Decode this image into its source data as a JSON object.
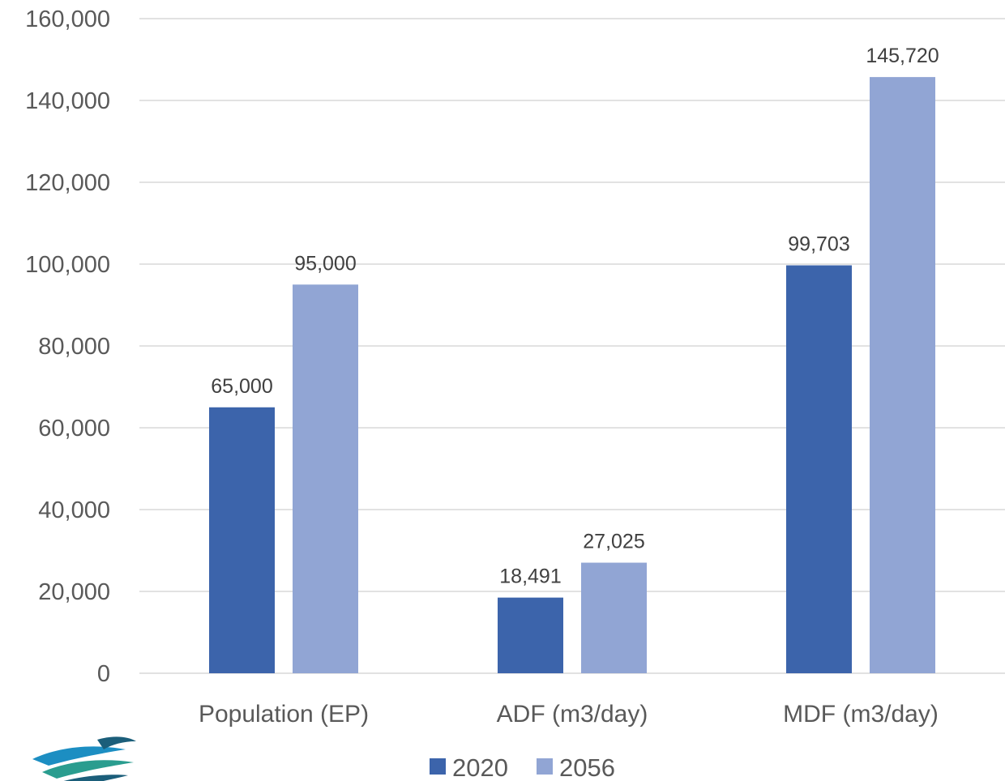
{
  "chart_data": {
    "type": "bar",
    "categories": [
      "Population (EP)",
      "ADF (m3/day)",
      "MDF (m3/day)"
    ],
    "series": [
      {
        "name": "2020",
        "values": [
          65000,
          18491,
          99703
        ],
        "labels": [
          "65,000",
          "18,491",
          "99,703"
        ],
        "color": "#3c64ab"
      },
      {
        "name": "2056",
        "values": [
          95000,
          27025,
          145720
        ],
        "labels": [
          "95,000",
          "27,025",
          "145,720"
        ],
        "color": "#91a5d4"
      }
    ],
    "title": "",
    "xlabel": "",
    "ylabel": "",
    "ylim": [
      0,
      160000
    ],
    "yticks": [
      0,
      20000,
      40000,
      60000,
      80000,
      100000,
      120000,
      140000,
      160000
    ],
    "ytick_labels": [
      "0",
      "20,000",
      "40,000",
      "60,000",
      "80,000",
      "100,000",
      "120,000",
      "140,000",
      "160,000"
    ],
    "grid": true,
    "legend_position": "bottom"
  },
  "logo": {
    "icon": "bird-wave-logo-icon",
    "colors": [
      "#1c8ec2",
      "#2a9d8f",
      "#1b5e7a"
    ]
  }
}
